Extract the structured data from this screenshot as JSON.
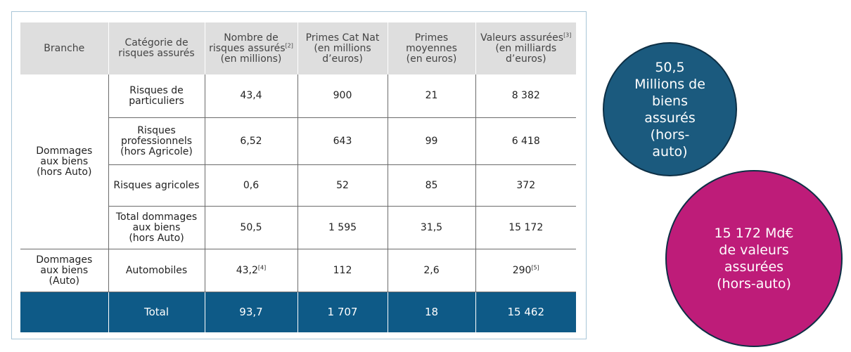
{
  "table": {
    "headers": [
      {
        "text": "Branche",
        "sup": ""
      },
      {
        "text": "Catégorie de\nrisques assurés",
        "sup": ""
      },
      {
        "text": "Nombre de\nrisques assurés",
        "sup": "[2]",
        "after": "\n(en millions)"
      },
      {
        "text": "Primes Cat Nat\n(en millions\nd’euros)",
        "sup": ""
      },
      {
        "text": "Primes\nmoyennes\n(en euros)",
        "sup": ""
      },
      {
        "text": "Valeurs assurées",
        "sup": "[3]",
        "after": "\n(en milliards\nd’euros)"
      }
    ],
    "branches": {
      "hors_auto": "Dommages\naux biens\n(hors Auto)",
      "auto": "Dommages\naux biens\n(Auto)"
    },
    "rows": [
      {
        "category": "Risques de\nparticuliers",
        "nombre": "43,4",
        "primes": "900",
        "moyennes": "21",
        "valeurs": "8 382"
      },
      {
        "category": "Risques\nprofessionnels\n(hors Agricole)",
        "nombre": "6,52",
        "primes": "643",
        "moyennes": "99",
        "valeurs": "6 418"
      },
      {
        "category": "Risques agricoles",
        "nombre": "0,6",
        "primes": "52",
        "moyennes": "85",
        "valeurs": "372"
      },
      {
        "category": "Total dommages\naux biens\n(hors Auto)",
        "nombre": "50,5",
        "primes": "1 595",
        "moyennes": "31,5",
        "valeurs": "15 172"
      },
      {
        "category": "Automobiles",
        "nombre": "43,2",
        "nombre_sup": "[4]",
        "primes": "112",
        "moyennes": "2,6",
        "valeurs": "290",
        "valeurs_sup": "[5]"
      }
    ],
    "total": {
      "label": "Total",
      "nombre": "93,7",
      "primes": "1 707",
      "moyennes": "18",
      "valeurs": "15 462"
    }
  },
  "circles": {
    "biens": "50,5\nMillions de\nbiens\nassurés\n(hors-\nauto)",
    "valeurs": "15 172 Md€\nde valeurs\nassurées\n(hors-auto)"
  },
  "colors": {
    "header_bg": "#dedede",
    "total_bg": "#0e5a87",
    "circle_blue": "#1b5a7e",
    "circle_magenta": "#be1c79"
  }
}
